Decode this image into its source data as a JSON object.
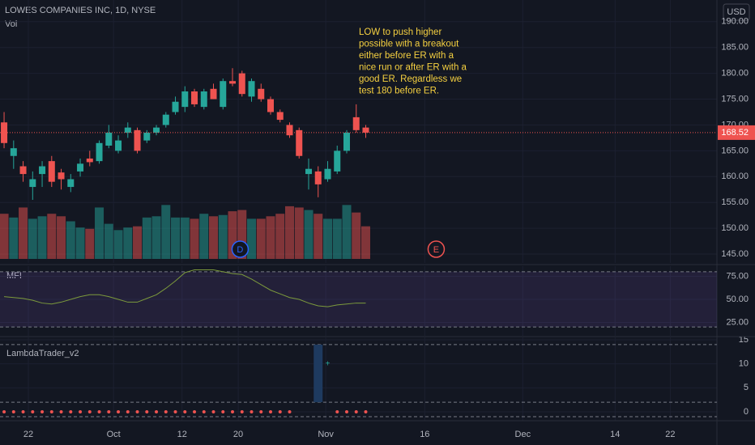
{
  "chart_data": [
    {
      "type": "candlestick",
      "title": "LOWES COMPANIES INC, 1D, NYSE",
      "volume_label": "Vol",
      "currency": "USD",
      "up_color": "#26a69a",
      "down_color": "#ef5350",
      "open": [
        170.5,
        164,
        162,
        158,
        160.5,
        163,
        160.8,
        158,
        161,
        163.5,
        163,
        166,
        165,
        168.5,
        169,
        167,
        168.5,
        170,
        172.5,
        173.5,
        176.5,
        173.5,
        177,
        173.5,
        178.5,
        180,
        175.5,
        177,
        175,
        172.5,
        170,
        169,
        160.5,
        161,
        159.5,
        161,
        165,
        171.5,
        169.5
      ],
      "high": [
        172.5,
        167,
        163,
        161,
        163,
        164,
        161.5,
        160.5,
        163.5,
        165,
        167,
        170,
        168,
        170.5,
        169.5,
        169,
        170,
        172.5,
        175.5,
        177.5,
        177,
        177,
        178,
        179,
        181,
        180.5,
        179,
        178,
        175.5,
        173,
        170.5,
        169.5,
        163.5,
        162,
        163,
        166,
        169,
        174,
        170
      ],
      "low": [
        165.5,
        161.5,
        159,
        155.5,
        158,
        158,
        157.5,
        157,
        160,
        162,
        162.5,
        165.5,
        164.5,
        167.5,
        164.5,
        166.5,
        168,
        169.5,
        172,
        172.5,
        173.5,
        173,
        175,
        173,
        177.5,
        175.5,
        174.5,
        174.5,
        172,
        170.5,
        167.5,
        163.5,
        157.5,
        156,
        159,
        160.5,
        164.5,
        168.5,
        167.5
      ],
      "close": [
        166.5,
        165.5,
        160.5,
        159.5,
        162,
        159,
        159.5,
        159.5,
        162.5,
        162.8,
        166.5,
        168.5,
        167,
        169.5,
        165,
        168.5,
        169.5,
        172,
        174.5,
        176.5,
        174,
        176.5,
        175,
        178.5,
        178,
        176,
        178.5,
        175,
        172.5,
        171,
        168,
        164,
        161.5,
        158.5,
        161.5,
        165,
        168.5,
        169,
        168.52
      ],
      "volume": [
        3.6,
        3.3,
        4.1,
        3.2,
        3.4,
        3.6,
        3.4,
        3.0,
        2.5,
        2.4,
        4.1,
        2.8,
        2.3,
        2.5,
        2.6,
        3.3,
        3.4,
        4.3,
        3.3,
        3.3,
        3.2,
        3.6,
        3.4,
        3.5,
        3.8,
        3.9,
        3.2,
        3.2,
        3.4,
        3.6,
        4.2,
        4.1,
        3.9,
        3.6,
        3.2,
        3.2,
        4.3,
        3.7,
        2.6
      ],
      "ylim": [
        143.28,
        194.2
      ],
      "yticks": [
        {
          "value": 190,
          "label": "190.00"
        },
        {
          "value": 185,
          "label": "185.00"
        },
        {
          "value": 180,
          "label": "180.00"
        },
        {
          "value": 175,
          "label": "175.00"
        },
        {
          "value": 170,
          "label": "170.00"
        },
        {
          "value": 165,
          "label": "165.00"
        },
        {
          "value": 160,
          "label": "160.00"
        },
        {
          "value": 155,
          "label": "155.00"
        },
        {
          "value": 150,
          "label": "150.00"
        },
        {
          "value": 145,
          "label": "145.00"
        }
      ],
      "xlim": [
        -0.43,
        74.9
      ],
      "xticks": [
        {
          "value": 2.55,
          "label": "22"
        },
        {
          "value": 11.5,
          "label": "Oct"
        },
        {
          "value": 18.7,
          "label": "12"
        },
        {
          "value": 24.6,
          "label": "20"
        },
        {
          "value": 33.8,
          "label": "Nov"
        },
        {
          "value": 44.2,
          "label": "16"
        },
        {
          "value": 54.5,
          "label": "Dec"
        },
        {
          "value": 64.2,
          "label": "14"
        },
        {
          "value": 70.0,
          "label": "22"
        }
      ],
      "events": [
        {
          "label": "D",
          "x": 24.8,
          "color": "#2962ff"
        },
        {
          "label": "E",
          "x": 45.4,
          "color": "#ef5350"
        }
      ],
      "annotation": [
        "LOW to push higher",
        "possible with a breakout",
        "either before ER with a",
        "nice run or after ER with a",
        "good ER. Regardless we",
        "test 180 before ER."
      ]
    },
    {
      "type": "line",
      "title": "MFI",
      "color": "#7c9a3c",
      "values": [
        53,
        52,
        51,
        49,
        46,
        45,
        47,
        50,
        53,
        55,
        55,
        53,
        50,
        47,
        47,
        51,
        55,
        62,
        70,
        79,
        82,
        82,
        82,
        80,
        78,
        77,
        72,
        66,
        60,
        56,
        52,
        50,
        46,
        43,
        42,
        44,
        45,
        46,
        46
      ],
      "bands": [
        80,
        20
      ],
      "band_color": "#7e57c2",
      "ylim": [
        10.5,
        86
      ],
      "yticks": [
        {
          "value": 75,
          "label": "75.00"
        },
        {
          "value": 50,
          "label": "50.00"
        },
        {
          "value": 25,
          "label": "25.00"
        }
      ]
    },
    {
      "type": "signal",
      "title": "LambdaTrader_v2",
      "bar": {
        "index": 33,
        "low": 2,
        "high": 14,
        "color": "#1e3a5f"
      },
      "marker": {
        "index": 34,
        "value": 10,
        "color": "#26a69a"
      },
      "dots": [
        0,
        0,
        0,
        0,
        0,
        0,
        0,
        0,
        0,
        0,
        0,
        0,
        0,
        0,
        0,
        0,
        0,
        0,
        0,
        0,
        0,
        0,
        0,
        0,
        0,
        0,
        0,
        0,
        0,
        0,
        0,
        null,
        null,
        null,
        null,
        0,
        0,
        0,
        0
      ],
      "dot_color": "#ef5350",
      "levels": [
        14,
        2,
        -1
      ],
      "ylim": [
        -1.85,
        15.5
      ],
      "yticks": [
        15,
        10,
        5,
        0
      ]
    }
  ]
}
